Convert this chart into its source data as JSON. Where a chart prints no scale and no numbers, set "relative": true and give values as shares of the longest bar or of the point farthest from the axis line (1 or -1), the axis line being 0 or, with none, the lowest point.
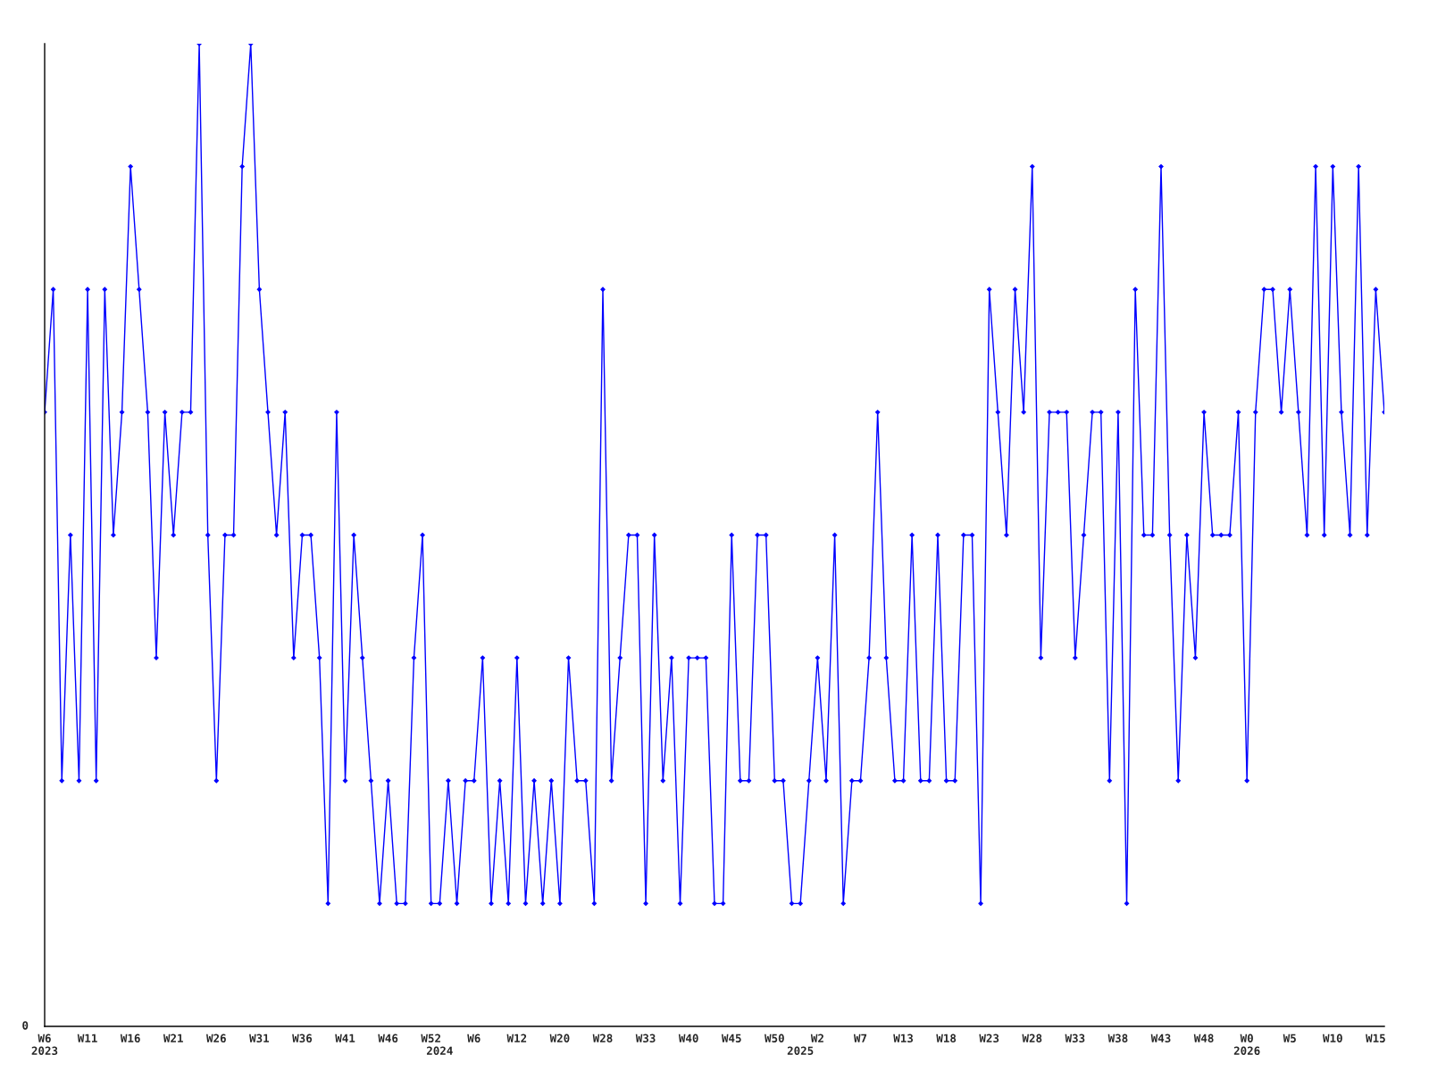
{
  "chart_data": {
    "type": "line",
    "relative": true,
    "marker": "diamond",
    "line_style": "solid",
    "grid": false,
    "legend": false,
    "annotations": [
      "0"
    ],
    "categories": [
      "W6\n2023",
      null,
      null,
      null,
      null,
      "W11",
      null,
      null,
      null,
      null,
      "W16",
      null,
      null,
      null,
      null,
      "W21",
      null,
      null,
      null,
      null,
      "W26",
      null,
      null,
      null,
      null,
      "W31",
      null,
      null,
      null,
      null,
      "W36",
      null,
      null,
      null,
      null,
      "W41",
      null,
      null,
      null,
      null,
      "W46",
      null,
      null,
      null,
      null,
      "W52",
      "\n2024",
      null,
      null,
      null,
      "W6",
      null,
      null,
      null,
      null,
      "W12",
      null,
      null,
      null,
      null,
      "W20",
      null,
      null,
      null,
      null,
      "W28",
      null,
      null,
      null,
      null,
      "W33",
      null,
      null,
      null,
      null,
      "W40",
      null,
      null,
      null,
      null,
      "W45",
      null,
      null,
      null,
      null,
      "W50",
      null,
      null,
      "\n2025",
      null,
      "W2",
      null,
      null,
      null,
      null,
      "W7",
      null,
      null,
      null,
      null,
      "W13",
      null,
      null,
      null,
      null,
      "W18",
      null,
      null,
      null,
      null,
      "W23",
      null,
      null,
      null,
      null,
      "W28",
      null,
      null,
      null,
      null,
      "W33",
      null,
      null,
      null,
      null,
      "W38",
      null,
      null,
      null,
      null,
      "W43",
      null,
      null,
      null,
      null,
      "W48",
      null,
      null,
      null,
      null,
      "W0\n2026",
      null,
      null,
      null,
      null,
      "W5",
      null,
      null,
      null,
      null,
      "W10",
      null,
      null,
      null,
      null,
      "W15",
      null
    ],
    "series": [
      {
        "color": "#0000ff",
        "values": [
          0.625,
          0.75,
          0.25,
          0.5,
          0.25,
          0.75,
          0.25,
          0.75,
          0.5,
          0.625,
          0.875,
          0.75,
          0.625,
          0.375,
          0.625,
          0.5,
          0.625,
          0.625,
          1,
          0.5,
          0.25,
          0.5,
          0.5,
          0.875,
          1,
          0.75,
          0.625,
          0.5,
          0.625,
          0.375,
          0.5,
          0.5,
          0.375,
          0.125,
          0.625,
          0.25,
          0.5,
          0.375,
          0.25,
          0.125,
          0.25,
          0.125,
          0.125,
          0.375,
          0.5,
          0.125,
          0.125,
          0.25,
          0.125,
          0.25,
          0.25,
          0.375,
          0.125,
          0.25,
          0.125,
          0.375,
          0.125,
          0.25,
          0.125,
          0.25,
          0.125,
          0.375,
          0.25,
          0.25,
          0.125,
          0.75,
          0.25,
          0.375,
          0.5,
          0.5,
          0.125,
          0.5,
          0.25,
          0.375,
          0.125,
          0.375,
          0.375,
          0.375,
          0.125,
          0.125,
          0.5,
          0.25,
          0.25,
          0.5,
          0.5,
          0.25,
          0.25,
          0.125,
          0.125,
          0.25,
          0.375,
          0.25,
          0.5,
          0.125,
          0.25,
          0.25,
          0.375,
          0.625,
          0.375,
          0.25,
          0.25,
          0.5,
          0.25,
          0.25,
          0.5,
          0.25,
          0.25,
          0.5,
          0.5,
          0.125,
          0.75,
          0.625,
          0.5,
          0.75,
          0.625,
          0.875,
          0.375,
          0.625,
          0.625,
          0.625,
          0.375,
          0.5,
          0.625,
          0.625,
          0.25,
          0.625,
          0.125,
          0.75,
          0.5,
          0.5,
          0.875,
          0.5,
          0.25,
          0.5,
          0.375,
          0.625,
          0.5,
          0.5,
          0.5,
          0.625,
          0.25,
          0.625,
          0.75,
          0.75,
          0.625,
          0.75,
          0.625,
          0.5,
          0.875,
          0.5,
          0.875,
          0.625,
          0.5,
          0.875,
          0.5,
          0.75,
          0.625
        ]
      }
    ]
  }
}
